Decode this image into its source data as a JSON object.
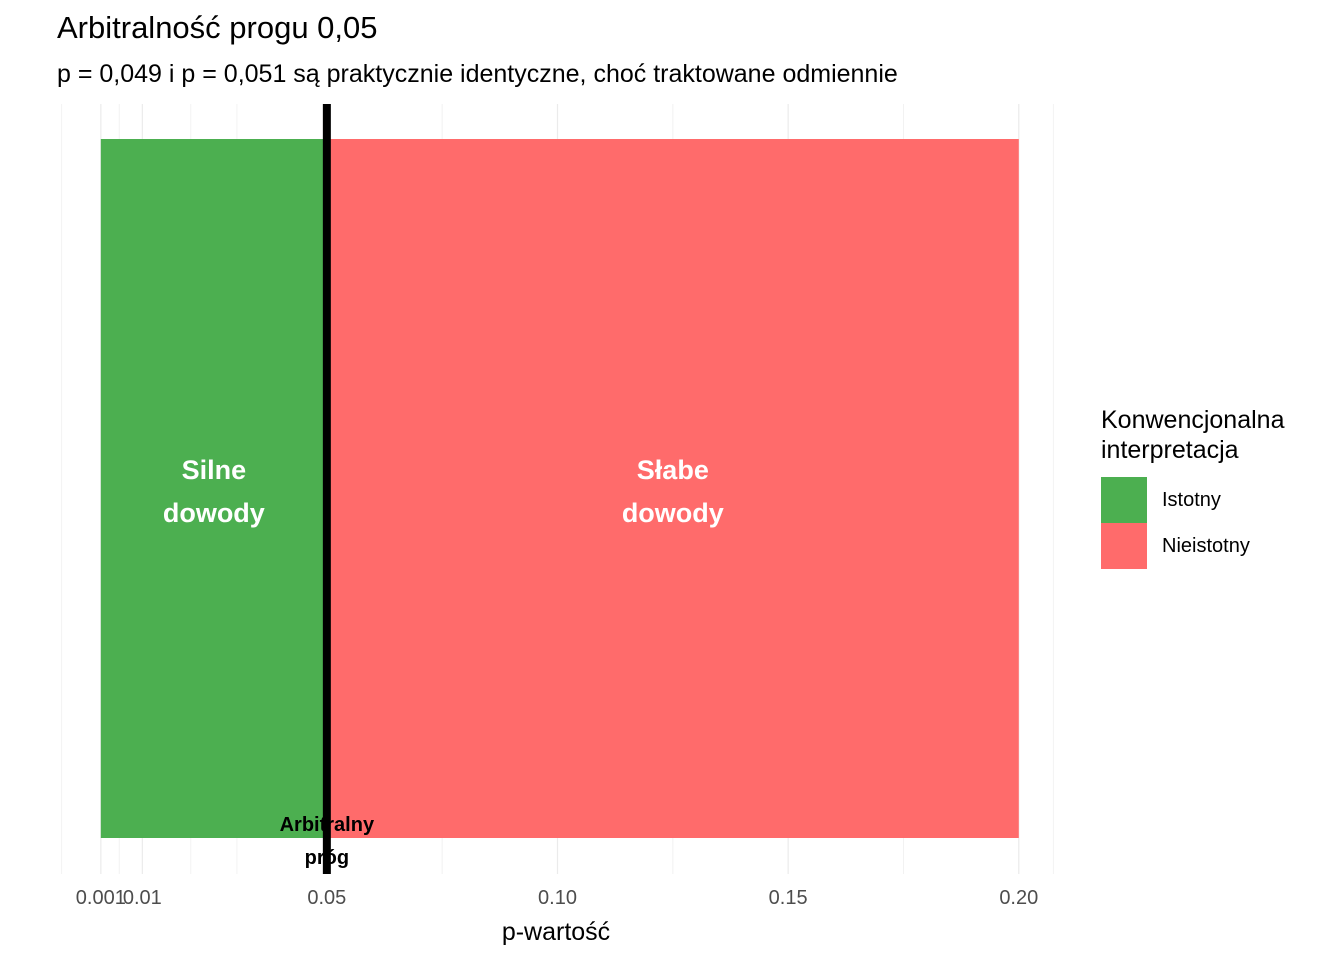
{
  "chart_data": {
    "type": "bar",
    "title": "Arbitralność progu 0,05",
    "subtitle": "p = 0,049 i p = 0,051 są praktycznie identyczne, choć traktowane odmiennie",
    "xlabel": "p-wartość",
    "ylabel": "",
    "xlim": [
      -0.0085,
      0.2085
    ],
    "x_ticks": [
      {
        "value": 0.001,
        "label": "0.001"
      },
      {
        "value": 0.01,
        "label": "0.01"
      },
      {
        "value": 0.05,
        "label": "0.05"
      },
      {
        "value": 0.1,
        "label": "0.10"
      },
      {
        "value": 0.15,
        "label": "0.15"
      },
      {
        "value": 0.2,
        "label": "0.20"
      }
    ],
    "x_minor_grid": [
      -0.0075,
      0.005,
      0.0205,
      0.0305,
      0.075,
      0.125,
      0.175,
      0.2075
    ],
    "grid": true,
    "regions": [
      {
        "xmin": 0.001,
        "xmax": 0.05,
        "category": "Istotny",
        "label": "Silne\ndowody",
        "color": "#4CAF50"
      },
      {
        "xmin": 0.05,
        "xmax": 0.2,
        "category": "Nieistotny",
        "label": "Słabe\ndowody",
        "color": "#FF6B6B"
      }
    ],
    "threshold": {
      "value": 0.05,
      "label": "Arbitralny\npróg",
      "color": "#000000"
    },
    "legend": {
      "title": "Konwencjonalna\ninterpretacja",
      "placement": "right",
      "items": [
        {
          "label": "Istotny",
          "color": "#4CAF50"
        },
        {
          "label": "Nieistotny",
          "color": "#FF6B6B"
        }
      ]
    }
  }
}
